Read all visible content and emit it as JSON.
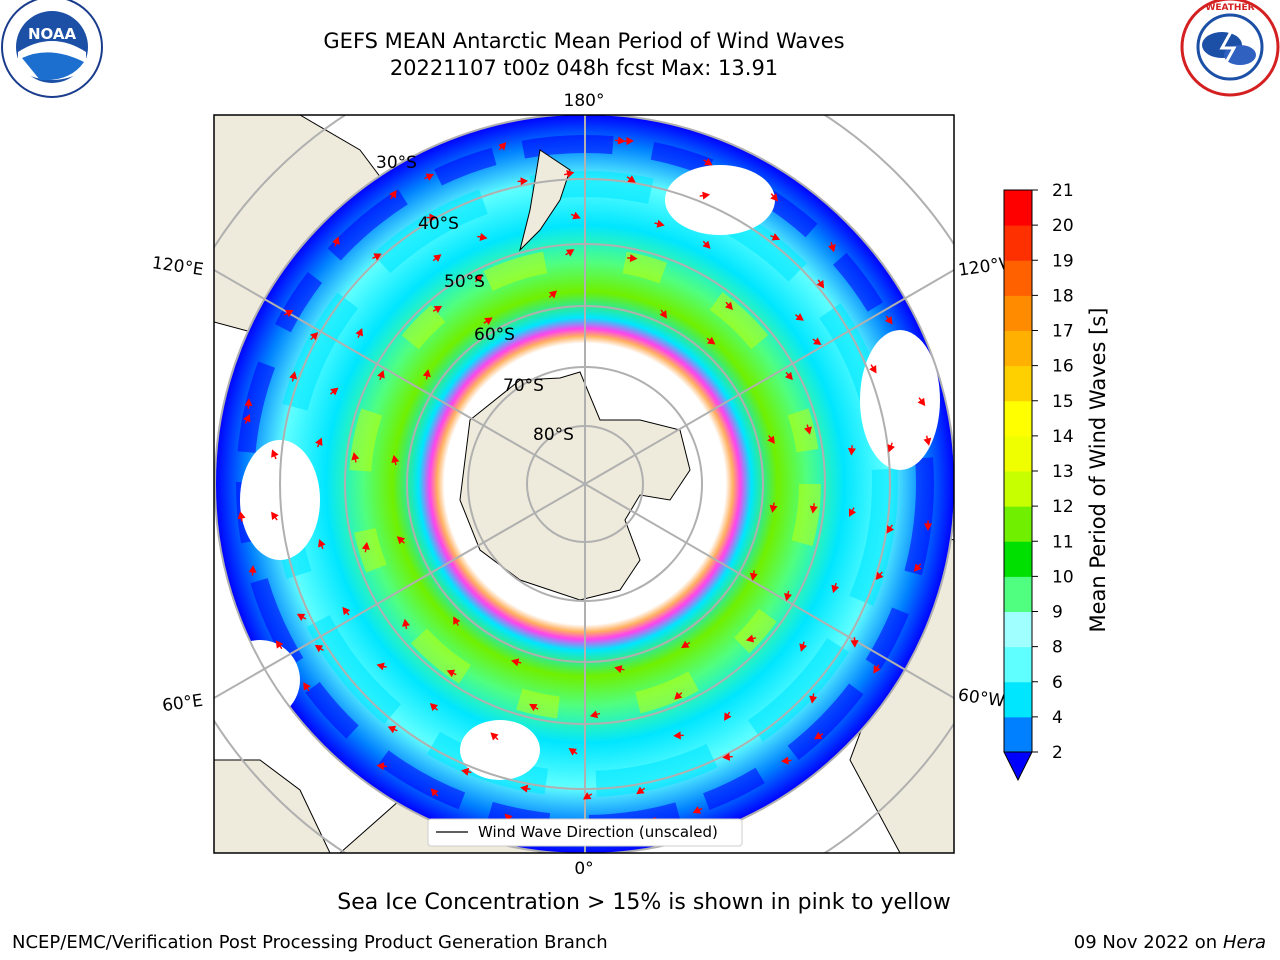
{
  "header": {
    "title_line1": "GEFS MEAN Antarctic Mean Period of Wind Waves",
    "title_line2": "20221107 t00z 048h fcst   Max: 13.91"
  },
  "map": {
    "projection": "south-polar-stereographic",
    "longitude_labels": {
      "top": "180°",
      "bottom": "0°",
      "left_upper": "120°E",
      "left_lower": "60°E",
      "right_upper": "120°W",
      "right_lower": "60°W"
    },
    "latitude_labels": [
      "30°S",
      "40°S",
      "50°S",
      "60°S",
      "70°S",
      "80°S"
    ],
    "legend_label": "Wind Wave Direction (unscaled)",
    "land_color": "#efebdc",
    "ice_edge_colors": [
      "#ff44ee",
      "#ffb060"
    ]
  },
  "colorbar": {
    "label": "Mean Period of Wind Waves [s]",
    "ticks": [
      "2",
      "4",
      "6",
      "8",
      "9",
      "10",
      "11",
      "12",
      "13",
      "14",
      "15",
      "16",
      "17",
      "18",
      "19",
      "20",
      "21"
    ],
    "colors": [
      "#0000ff",
      "#0080ff",
      "#00e6ff",
      "#60ffff",
      "#a0ffff",
      "#50ff80",
      "#00e000",
      "#70f000",
      "#c8ff00",
      "#f0ff00",
      "#ffff00",
      "#ffd000",
      "#ffb000",
      "#ff8c00",
      "#ff6000",
      "#ff3000",
      "#ff0000"
    ],
    "extend_color": "#0000ff"
  },
  "footer": {
    "note": "Sea Ice Concentration > 15% is shown in pink to yellow",
    "credit": "NCEP/EMC/Verification Post Processing Product Generation Branch",
    "date": "09 Nov 2022 on",
    "machine": "Hera"
  }
}
